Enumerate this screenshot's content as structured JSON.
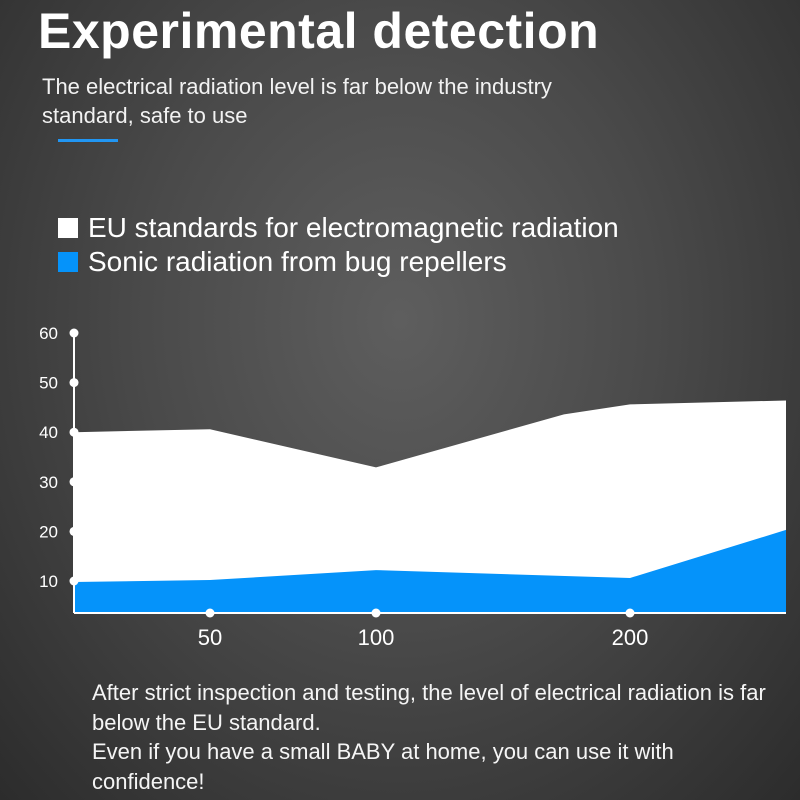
{
  "header": {
    "title": "Experimental detection",
    "subtitle": "The electrical radiation level is far below the industry standard, safe to use",
    "accent": "#2196f3"
  },
  "chart_data": {
    "type": "area",
    "title": "",
    "xlabel": "",
    "ylabel": "",
    "ylim": [
      3.5,
      60
    ],
    "yticks": [
      10,
      20,
      30,
      40,
      50,
      60
    ],
    "xticks": [
      50,
      100,
      200
    ],
    "legend_placement": "top-left",
    "series": [
      {
        "name": "EU standards for electromagnetic radiation",
        "color": "#ffffff",
        "x": [
          9,
          50,
          100,
          174,
          200,
          261
        ],
        "values": [
          40,
          40.6,
          32.9,
          43.6,
          45.6,
          46.4
        ]
      },
      {
        "name": "Sonic radiation from bug repellers",
        "color": "#0593fa",
        "x": [
          9,
          50,
          100,
          200,
          261
        ],
        "values": [
          9.8,
          10.2,
          12.2,
          10.6,
          20.3
        ]
      }
    ]
  },
  "footer": {
    "lines": [
      "After strict inspection and testing, the level of electrical radiation is far below the EU standard.",
      "Even if you have a small BABY at home, you can use it with confidence!"
    ]
  }
}
